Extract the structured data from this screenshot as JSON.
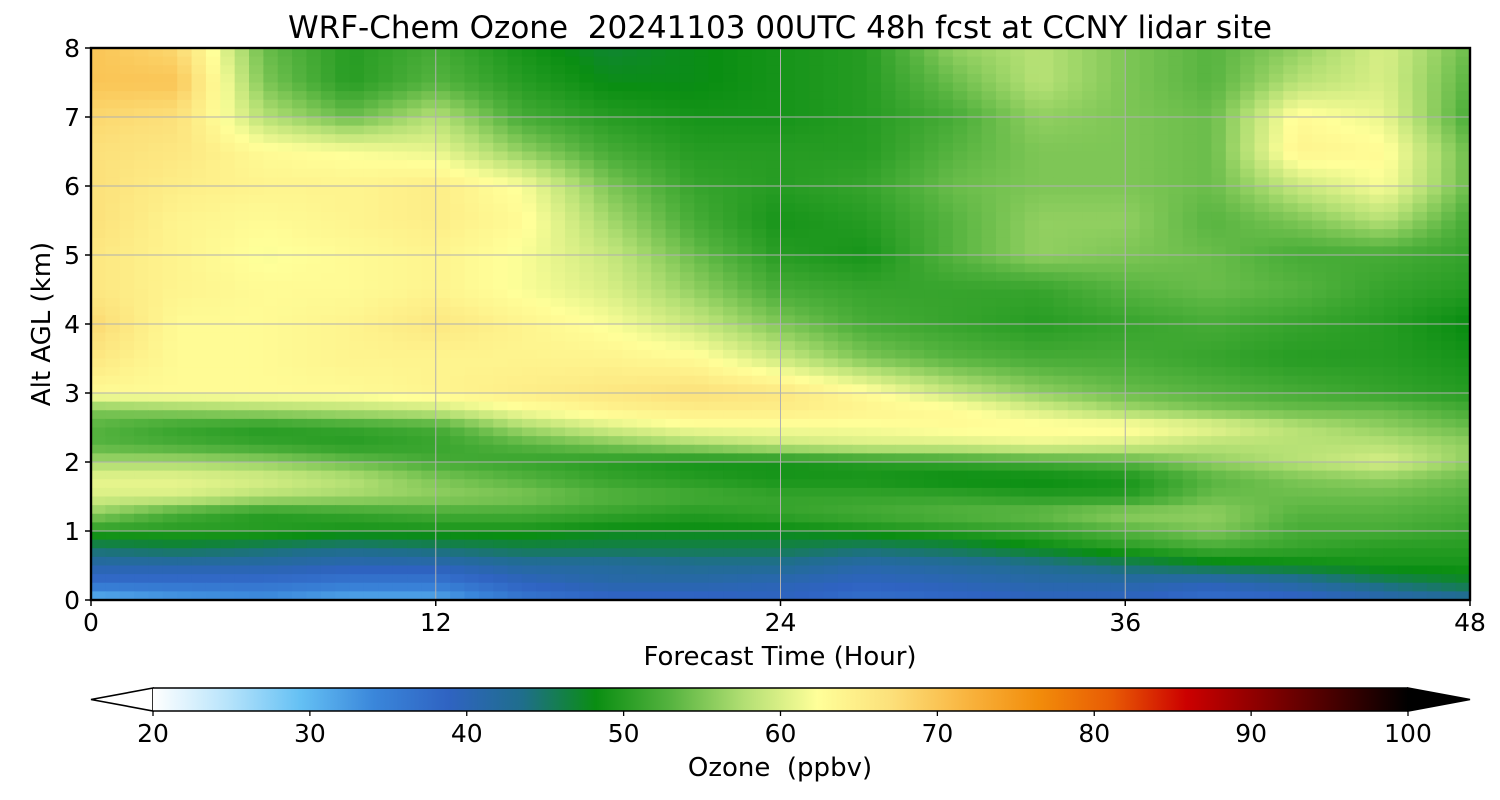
{
  "chart_data": {
    "type": "heatmap",
    "title": "WRF-Chem Ozone  20241103 00UTC 48h fcst at CCNY lidar site",
    "xlabel": "Forecast Time (Hour)",
    "ylabel": "Alt AGL (km)",
    "xlim": [
      0,
      48
    ],
    "ylim": [
      0,
      8
    ],
    "xticks": [
      0,
      12,
      24,
      36,
      48
    ],
    "yticks": [
      0,
      1,
      2,
      3,
      4,
      5,
      6,
      7,
      8
    ],
    "grid": true,
    "colorbar": {
      "label": "Ozone  (ppbv)",
      "orientation": "horizontal",
      "range": [
        20,
        100
      ],
      "ticks": [
        20,
        30,
        40,
        50,
        60,
        70,
        80,
        90,
        100
      ],
      "extend": "both",
      "colors": [
        "#ffffff",
        "#b8e4fb",
        "#64c0f4",
        "#3a86da",
        "#2f63c2",
        "#1f6e8c",
        "#0a8e12",
        "#55b33f",
        "#b2df73",
        "#ffff99",
        "#fce07a",
        "#f9b540",
        "#f28c0a",
        "#e85a04",
        "#cc0000",
        "#8a0000",
        "#460000",
        "#000000"
      ]
    },
    "x": [
      0,
      3,
      6,
      9,
      12,
      15,
      18,
      21,
      24,
      27,
      30,
      33,
      36,
      39,
      42,
      45,
      48
    ],
    "y": [
      0,
      0.25,
      0.5,
      0.75,
      1,
      1.25,
      1.5,
      1.75,
      2,
      2.25,
      2.5,
      2.75,
      3,
      3.5,
      4,
      4.5,
      5,
      5.5,
      6,
      6.5,
      7,
      7.5,
      8
    ],
    "values": [
      [
        30,
        32,
        33,
        31,
        31,
        36,
        38,
        38,
        39,
        37,
        38,
        39,
        39,
        37,
        38,
        40,
        42
      ],
      [
        37,
        37,
        37,
        36,
        36,
        39,
        41,
        41,
        40,
        39,
        40,
        41,
        41,
        40,
        42,
        45,
        47
      ],
      [
        41,
        41,
        41,
        40,
        40,
        42,
        42,
        43,
        43,
        41,
        42,
        43,
        45,
        47,
        48,
        49,
        49
      ],
      [
        45,
        46,
        45,
        44,
        45,
        46,
        46,
        46,
        46,
        45,
        46,
        48,
        50,
        52,
        51,
        50,
        50
      ],
      [
        50,
        50,
        50,
        49,
        49,
        49,
        48,
        48,
        48,
        49,
        50,
        51,
        53,
        55,
        52,
        52,
        51
      ],
      [
        56,
        52,
        50,
        51,
        52,
        52,
        51,
        50,
        51,
        52,
        53,
        54,
        56,
        56,
        53,
        53,
        52
      ],
      [
        60,
        60,
        58,
        57,
        56,
        55,
        53,
        52,
        51,
        51,
        51,
        50,
        50,
        54,
        54,
        54,
        53
      ],
      [
        61,
        61,
        60,
        58,
        55,
        53,
        51,
        50,
        49,
        49,
        48,
        48,
        49,
        53,
        55,
        56,
        54
      ],
      [
        57,
        57,
        56,
        54,
        52,
        51,
        50,
        49,
        49,
        50,
        51,
        52,
        53,
        56,
        58,
        60,
        56
      ],
      [
        53,
        52,
        51,
        50,
        51,
        53,
        55,
        57,
        59,
        60,
        60,
        61,
        60,
        58,
        58,
        58,
        56
      ],
      [
        53,
        51,
        50,
        51,
        52,
        57,
        60,
        62,
        62,
        62,
        63,
        63,
        63,
        61,
        58,
        56,
        54
      ],
      [
        55,
        56,
        57,
        58,
        59,
        62,
        64,
        65,
        65,
        64,
        63,
        60,
        57,
        55,
        54,
        54,
        52
      ],
      [
        63,
        63,
        63,
        63,
        64,
        65,
        66,
        67,
        66,
        63,
        59,
        56,
        54,
        53,
        52,
        51,
        50
      ],
      [
        66,
        63,
        63,
        64,
        64,
        64,
        64,
        63,
        59,
        55,
        53,
        52,
        52,
        51,
        50,
        50,
        49
      ],
      [
        68,
        63,
        63,
        64,
        66,
        64,
        62,
        59,
        55,
        52,
        51,
        50,
        51,
        52,
        51,
        50,
        48
      ],
      [
        66,
        64,
        63,
        63,
        64,
        62,
        60,
        56,
        52,
        51,
        51,
        51,
        53,
        54,
        53,
        51,
        50
      ],
      [
        66,
        64,
        62,
        63,
        64,
        62,
        59,
        54,
        50,
        49,
        53,
        56,
        55,
        54,
        52,
        52,
        51
      ],
      [
        67,
        64,
        63,
        64,
        65,
        63,
        57,
        52,
        49,
        50,
        53,
        56,
        56,
        53,
        55,
        58,
        52
      ],
      [
        67,
        65,
        64,
        64,
        65,
        62,
        55,
        51,
        50,
        51,
        54,
        55,
        55,
        54,
        59,
        62,
        54
      ],
      [
        67,
        66,
        63,
        62,
        61,
        56,
        52,
        50,
        50,
        50,
        53,
        55,
        55,
        54,
        64,
        63,
        54
      ],
      [
        68,
        67,
        58,
        54,
        58,
        52,
        50,
        49,
        49,
        50,
        52,
        56,
        55,
        54,
        63,
        61,
        52
      ],
      [
        70,
        70,
        55,
        50,
        53,
        50,
        48,
        48,
        49,
        50,
        54,
        58,
        55,
        53,
        58,
        60,
        53
      ],
      [
        70,
        68,
        54,
        50,
        52,
        49,
        47,
        48,
        49,
        50,
        56,
        58,
        55,
        53,
        56,
        60,
        54
      ]
    ]
  }
}
